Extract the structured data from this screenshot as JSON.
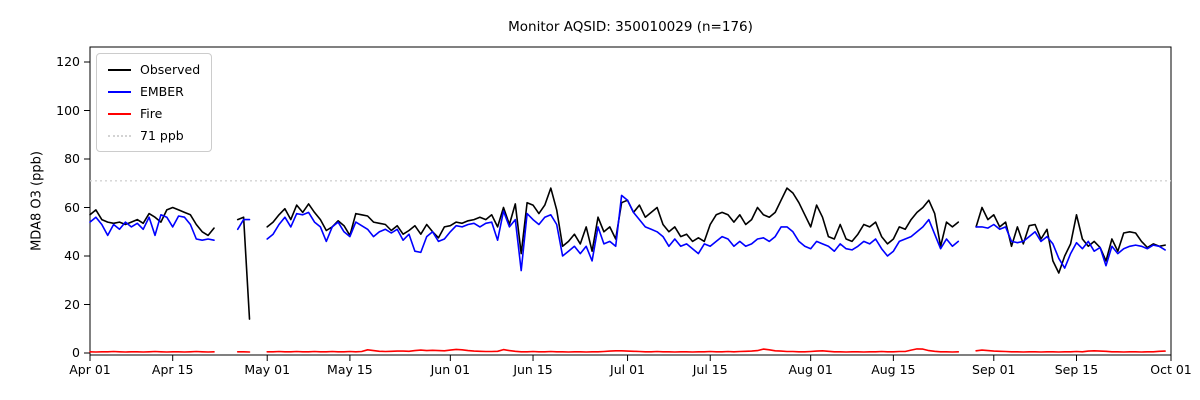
{
  "chart_data": {
    "type": "line",
    "title": "Monitor AQSID: 350010029 (n=176)",
    "xlabel": "",
    "ylabel": "MDA8 O3 (ppb)",
    "ylim": [
      0,
      126
    ],
    "grid": false,
    "n_days": 183,
    "x_start": "Apr 01",
    "x_end": "Oct 01",
    "y_ticks": [
      0,
      20,
      40,
      60,
      80,
      100,
      120
    ],
    "x_tick_labels": [
      "Apr 01",
      "Apr 15",
      "May 01",
      "May 15",
      "Jun 01",
      "Jun 15",
      "Jul 01",
      "Jul 15",
      "Aug 01",
      "Aug 15",
      "Sep 01",
      "Sep 15",
      "Oct 01"
    ],
    "x_tick_days": [
      0,
      14,
      30,
      44,
      61,
      75,
      91,
      105,
      122,
      136,
      153,
      167,
      183
    ],
    "threshold": {
      "label": "71 ppb",
      "value": 71,
      "color": "#d3d3d3",
      "style": "dotted"
    },
    "legend": {
      "position": "upper left",
      "entries": [
        "Observed",
        "EMBER",
        "Fire",
        "71 ppb"
      ]
    },
    "series": [
      {
        "name": "Observed",
        "color": "#000000",
        "values": [
          57,
          59,
          55,
          54,
          53.5,
          54,
          53,
          54,
          55,
          53.5,
          57.5,
          56,
          54,
          59,
          60,
          59,
          58,
          57,
          53,
          50,
          48.5,
          51.5,
          null,
          null,
          null,
          55,
          56,
          14,
          null,
          null,
          52,
          54,
          57,
          59.5,
          55,
          61,
          58,
          61.5,
          58,
          55,
          50.5,
          52,
          54.5,
          52.5,
          48.5,
          57.5,
          57,
          56.5,
          54,
          53.5,
          53,
          50.5,
          52.5,
          49,
          50.5,
          52.5,
          49,
          53,
          50,
          47.5,
          52,
          52.5,
          54,
          53.5,
          54.5,
          55,
          56,
          55,
          57,
          52,
          60,
          53,
          61.5,
          41,
          62,
          61,
          57.5,
          61,
          68,
          59,
          44,
          46,
          49,
          45,
          52,
          42,
          56,
          50,
          52,
          47,
          62,
          63,
          58,
          61,
          56,
          58,
          60,
          53,
          50,
          52,
          48,
          49,
          46,
          47.5,
          46,
          53,
          57,
          58,
          57,
          54,
          57,
          53,
          55,
          60,
          57,
          56,
          58,
          63,
          68,
          66,
          62,
          57,
          52,
          61,
          56,
          48,
          47,
          53,
          47,
          46,
          49,
          53,
          52,
          54,
          48,
          45,
          47,
          52,
          51,
          55,
          58,
          60,
          63,
          57.5,
          44,
          54,
          52,
          54,
          null,
          null,
          52,
          60,
          55,
          57,
          52,
          54,
          44,
          52,
          45,
          52.5,
          53,
          47,
          51,
          38,
          33,
          40,
          45,
          57,
          47,
          44,
          46,
          43.5,
          38,
          47,
          42,
          49.5,
          50,
          49.5,
          46,
          43.5,
          45,
          44,
          44.5
        ]
      },
      {
        "name": "EMBER",
        "color": "#0000ff",
        "values": [
          54,
          56,
          53,
          48.5,
          53,
          51,
          54,
          52,
          53.5,
          51,
          56,
          48.5,
          57,
          56,
          52,
          56.5,
          56,
          53,
          47,
          46.5,
          47,
          46.5,
          null,
          null,
          null,
          51,
          55,
          55,
          null,
          null,
          47,
          49,
          53,
          56,
          52,
          57.5,
          57,
          58,
          54,
          52,
          46,
          52,
          54,
          50,
          48,
          54,
          52.5,
          51,
          48,
          50,
          51,
          49.5,
          51,
          46.5,
          49,
          42,
          41.5,
          48,
          50,
          46,
          47,
          50,
          52.5,
          52,
          53,
          53.5,
          52,
          53.5,
          54,
          46.5,
          58.5,
          52,
          55,
          34,
          57.5,
          55,
          53,
          56,
          57,
          53,
          40,
          42,
          44,
          41,
          44,
          38,
          52,
          45,
          46,
          44,
          65,
          63,
          58,
          55,
          52,
          51,
          50,
          48,
          44,
          47,
          44,
          45,
          43,
          41,
          45,
          44,
          46,
          48,
          47,
          44,
          46,
          44,
          45,
          47,
          47.5,
          46,
          48,
          52,
          52,
          50,
          46,
          44,
          43,
          46,
          45,
          44,
          42,
          45,
          43,
          42.5,
          44,
          46,
          45,
          47,
          43,
          40,
          42,
          46,
          47,
          48,
          50,
          52,
          55,
          49,
          43,
          47,
          44,
          46,
          null,
          null,
          52,
          52,
          51.5,
          53,
          51,
          52,
          46,
          45.5,
          46,
          48,
          50,
          46,
          48,
          45,
          39,
          35,
          41,
          45.5,
          43,
          46,
          42,
          43.5,
          36,
          44,
          41,
          43,
          44,
          44.5,
          44,
          43,
          44.5,
          44,
          42.5
        ]
      },
      {
        "name": "Fire",
        "color": "#ff0000",
        "values": [
          0.5,
          0.4,
          0.5,
          0.5,
          0.6,
          0.5,
          0.4,
          0.5,
          0.5,
          0.4,
          0.5,
          0.6,
          0.5,
          0.4,
          0.5,
          0.5,
          0.4,
          0.5,
          0.6,
          0.5,
          0.4,
          0.5,
          null,
          null,
          null,
          0.5,
          0.5,
          0.4,
          null,
          null,
          0.5,
          0.5,
          0.6,
          0.5,
          0.5,
          0.6,
          0.5,
          0.5,
          0.6,
          0.5,
          0.5,
          0.6,
          0.5,
          0.5,
          0.6,
          0.5,
          0.6,
          1.3,
          1.0,
          0.7,
          0.6,
          0.7,
          0.8,
          0.8,
          0.7,
          1.0,
          1.2,
          1.0,
          1.1,
          1.0,
          0.9,
          1.2,
          1.5,
          1.3,
          1.0,
          0.8,
          0.7,
          0.6,
          0.6,
          0.7,
          1.4,
          1.0,
          0.7,
          0.5,
          0.5,
          0.6,
          0.5,
          0.5,
          0.6,
          0.5,
          0.5,
          0.4,
          0.5,
          0.5,
          0.4,
          0.5,
          0.5,
          0.6,
          0.8,
          0.9,
          0.9,
          0.8,
          0.7,
          0.6,
          0.5,
          0.5,
          0.6,
          0.5,
          0.5,
          0.4,
          0.5,
          0.5,
          0.4,
          0.5,
          0.5,
          0.6,
          0.5,
          0.5,
          0.6,
          0.5,
          0.6,
          0.7,
          0.8,
          1.0,
          1.6,
          1.3,
          0.9,
          0.8,
          0.6,
          0.6,
          0.5,
          0.5,
          0.6,
          0.8,
          0.9,
          0.7,
          0.5,
          0.5,
          0.4,
          0.5,
          0.5,
          0.4,
          0.5,
          0.5,
          0.6,
          0.5,
          0.5,
          0.6,
          0.6,
          1.2,
          1.7,
          1.6,
          1.0,
          0.7,
          0.5,
          0.5,
          0.4,
          0.5,
          null,
          null,
          0.9,
          1.2,
          1.0,
          0.8,
          0.7,
          0.6,
          0.5,
          0.5,
          0.4,
          0.5,
          0.5,
          0.4,
          0.5,
          0.5,
          0.4,
          0.5,
          0.5,
          0.6,
          0.5,
          0.8,
          0.9,
          0.8,
          0.7,
          0.5,
          0.5,
          0.4,
          0.5,
          0.5,
          0.4,
          0.5,
          0.5,
          0.7,
          0.8
        ]
      }
    ]
  }
}
